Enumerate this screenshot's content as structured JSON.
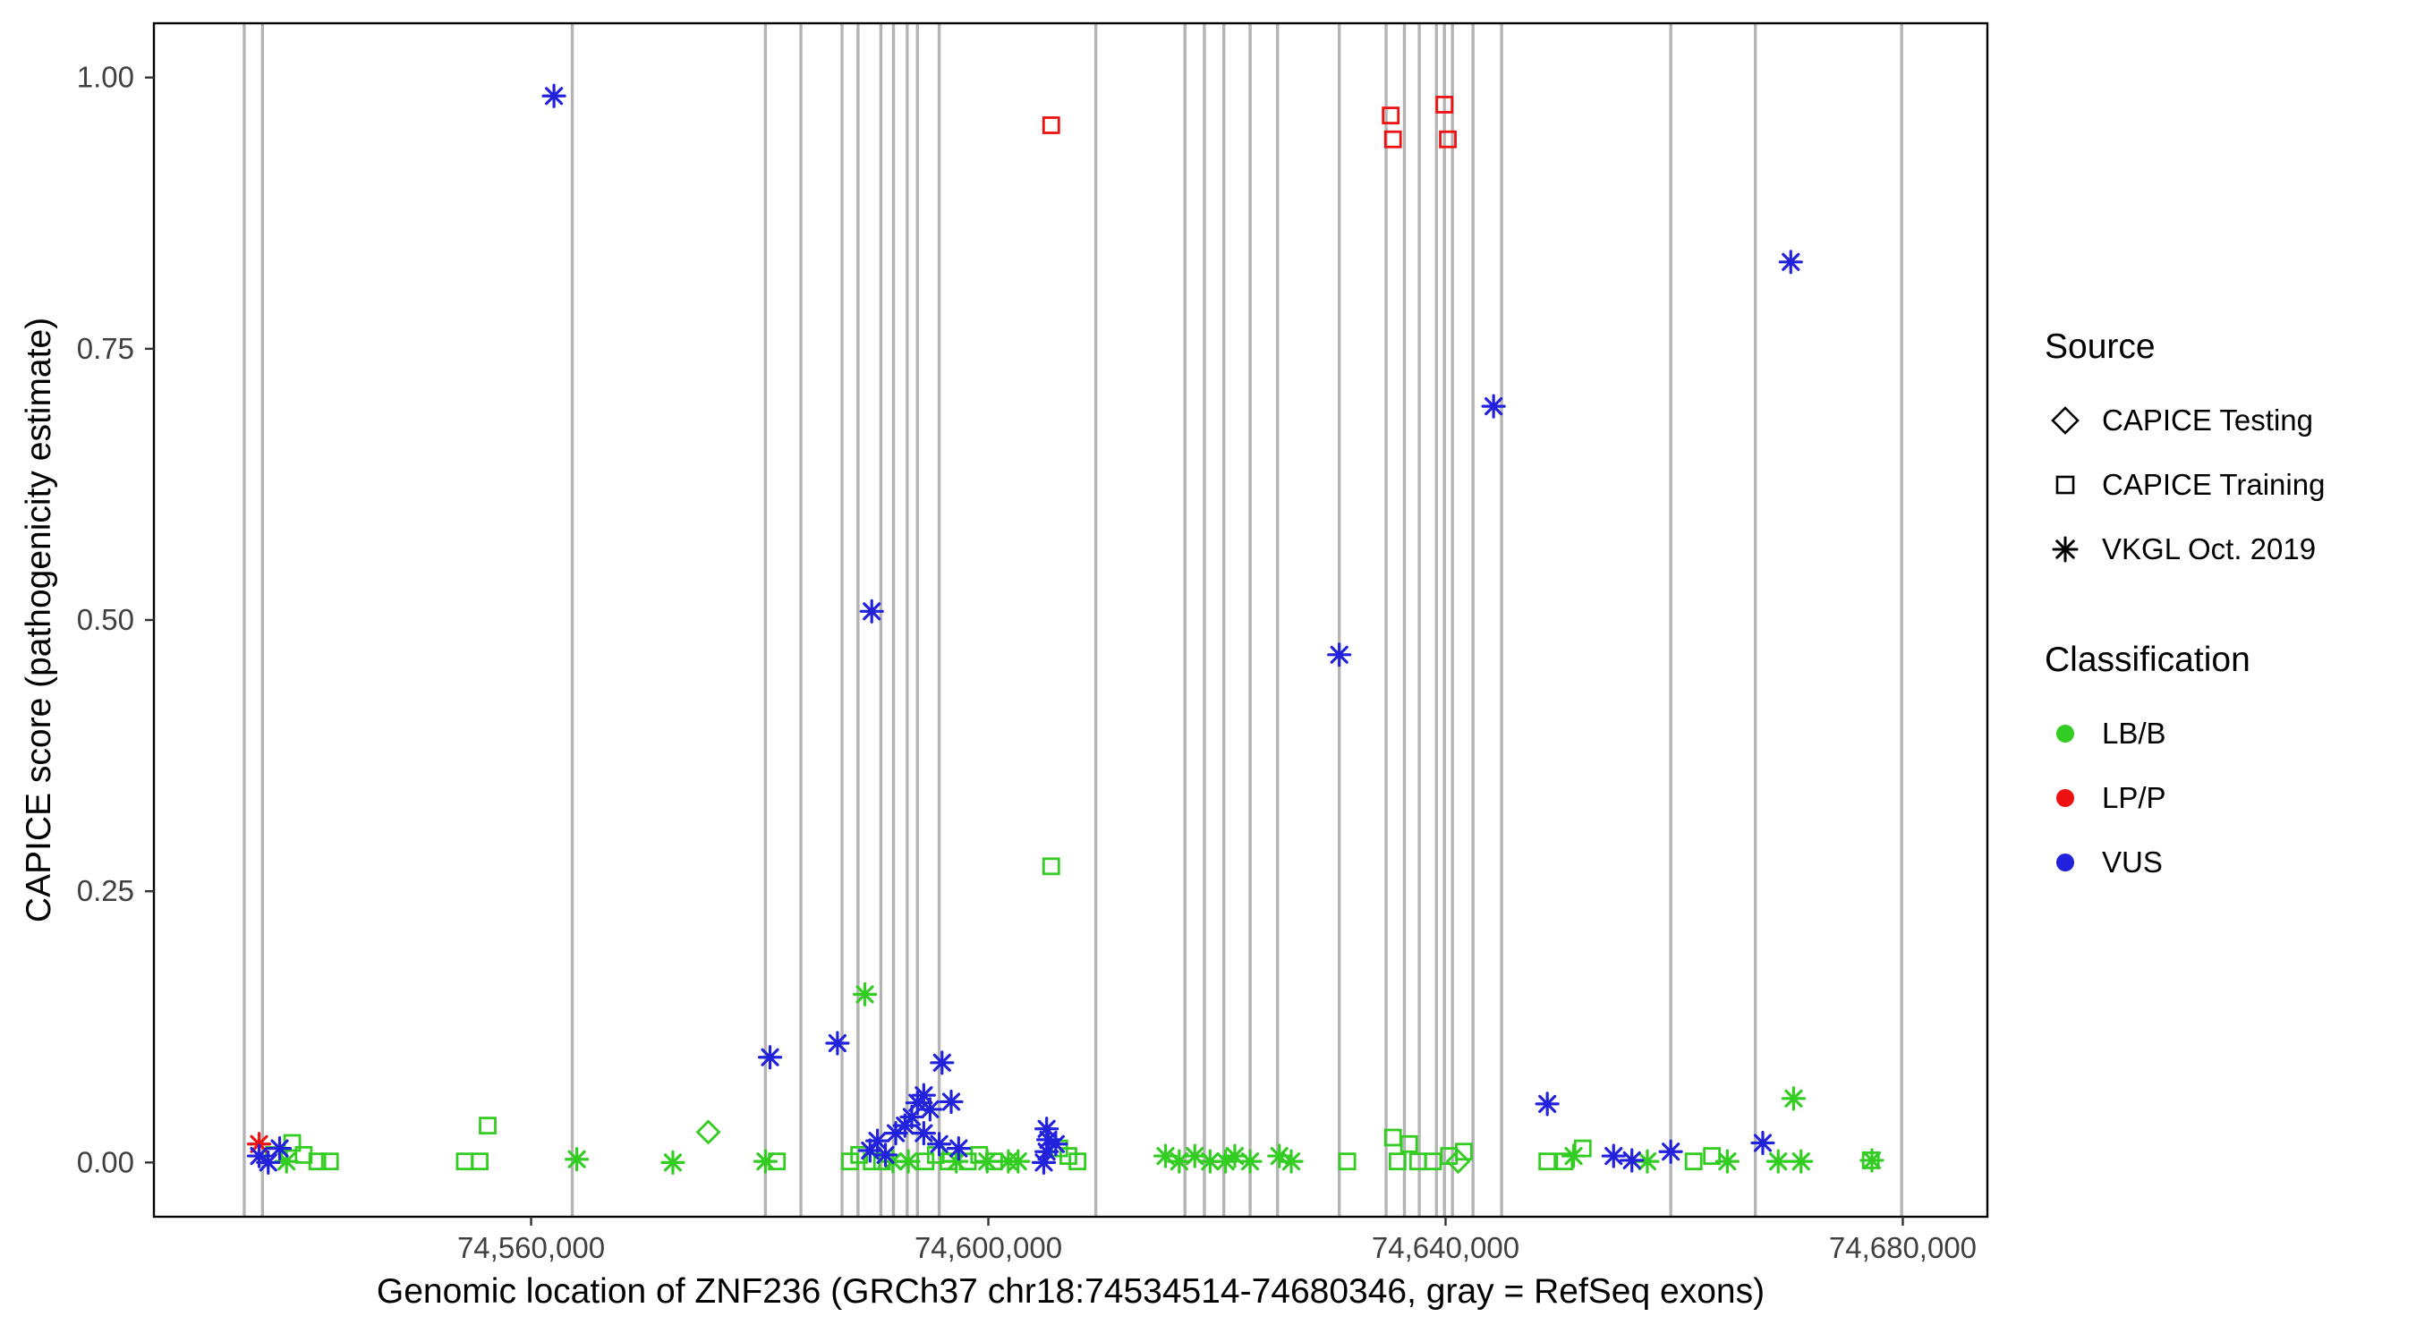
{
  "legend": {
    "source_title": "Source",
    "source_items": [
      {
        "label": "CAPICE Testing",
        "shape": "diamond"
      },
      {
        "label": "CAPICE Training",
        "shape": "square"
      },
      {
        "label": "VKGL Oct. 2019",
        "shape": "asterisk"
      }
    ],
    "classification_title": "Classification",
    "classification_items": [
      {
        "label": "LB/B",
        "color": "#33cc22"
      },
      {
        "label": "LP/P",
        "color": "#ee1111"
      },
      {
        "label": "VUS",
        "color": "#2222dd"
      }
    ]
  },
  "chart_data": {
    "type": "scatter",
    "xlabel": "Genomic location of ZNF236 (GRCh37 chr18:74534514-74680346, gray = RefSeq exons)",
    "ylabel": "CAPICE score (pathogenicity estimate)",
    "xlim": [
      74527000,
      74687400
    ],
    "ylim": [
      -0.05,
      1.05
    ],
    "xticks": [
      74560000,
      74600000,
      74640000,
      74680000
    ],
    "xtick_labels": [
      "74,560,000",
      "74,600,000",
      "74,640,000",
      "74,680,000"
    ],
    "yticks": [
      0,
      0.25,
      0.5,
      0.75,
      1.0
    ],
    "ytick_labels": [
      "0.00",
      "0.25",
      "0.50",
      "0.75",
      "1.00"
    ],
    "grid": false,
    "legend_position": "right",
    "exon_color": "#b4b4b4",
    "panel_border_color": "#000000",
    "classification_colors": {
      "LB/B": "#33cc22",
      "LP/P": "#ee1111",
      "VUS": "#2222dd"
    },
    "exons": [
      74534900,
      74536500,
      74563600,
      74580500,
      74583600,
      74587200,
      74588600,
      74590600,
      74591700,
      74592900,
      74593800,
      74595700,
      74609400,
      74617200,
      74618900,
      74620600,
      74622900,
      74625300,
      74630700,
      74634800,
      74636400,
      74637700,
      74639200,
      74639900,
      74640600,
      74642400,
      74644900,
      74659700,
      74667100,
      74679900
    ],
    "series": [
      {
        "name": "CAPICE Testing / LB/B",
        "source": "CAPICE Testing",
        "classification": "LB/B",
        "shape": "diamond",
        "points": [
          [
            74575500,
            0.028
          ],
          [
            74641100,
            0.001
          ]
        ]
      },
      {
        "name": "CAPICE Training / LB/B",
        "source": "CAPICE Training",
        "classification": "LB/B",
        "shape": "square",
        "points": [
          [
            74537500,
            0.007
          ],
          [
            74539100,
            0.018
          ],
          [
            74540100,
            0.007
          ],
          [
            74541300,
            0.001
          ],
          [
            74542400,
            0.001
          ],
          [
            74554200,
            0.001
          ],
          [
            74555500,
            0.001
          ],
          [
            74556200,
            0.034
          ],
          [
            74581500,
            0.001
          ],
          [
            74587900,
            0.001
          ],
          [
            74588700,
            0.007
          ],
          [
            74589800,
            0.001
          ],
          [
            74590700,
            0.001
          ],
          [
            74594500,
            0.001
          ],
          [
            74595400,
            0.007
          ],
          [
            74596500,
            0.001
          ],
          [
            74598200,
            0.001
          ],
          [
            74599200,
            0.007
          ],
          [
            74600500,
            0.001
          ],
          [
            74605500,
            0.273
          ],
          [
            74606200,
            0.013
          ],
          [
            74607000,
            0.006
          ],
          [
            74607800,
            0.001
          ],
          [
            74631400,
            0.001
          ],
          [
            74635400,
            0.023
          ],
          [
            74636800,
            0.017
          ],
          [
            74635800,
            0.001
          ],
          [
            74637600,
            0.001
          ],
          [
            74638900,
            0.001
          ],
          [
            74640300,
            0.006
          ],
          [
            74641600,
            0.01
          ],
          [
            74648900,
            0.001
          ],
          [
            74650400,
            0.001
          ],
          [
            74652000,
            0.013
          ],
          [
            74661700,
            0.001
          ],
          [
            74663300,
            0.006
          ],
          [
            74677200,
            0.002
          ]
        ]
      },
      {
        "name": "CAPICE Training / LP/P",
        "source": "CAPICE Training",
        "classification": "LP/P",
        "shape": "square",
        "points": [
          [
            74605500,
            0.956
          ],
          [
            74635200,
            0.965
          ],
          [
            74635400,
            0.943
          ],
          [
            74639900,
            0.975
          ],
          [
            74640200,
            0.943
          ]
        ]
      },
      {
        "name": "VKGL Oct. 2019 / LB/B",
        "source": "VKGL Oct. 2019",
        "classification": "LB/B",
        "shape": "asterisk",
        "points": [
          [
            74538600,
            0.001
          ],
          [
            74564000,
            0.003
          ],
          [
            74572400,
            0.0
          ],
          [
            74580500,
            0.001
          ],
          [
            74589200,
            0.155
          ],
          [
            74591650,
            0.001
          ],
          [
            74593000,
            0.001
          ],
          [
            74597200,
            0.001
          ],
          [
            74599900,
            0.001
          ],
          [
            74601750,
            0.001
          ],
          [
            74602600,
            0.001
          ],
          [
            74615500,
            0.006
          ],
          [
            74616700,
            0.001
          ],
          [
            74618060,
            0.006
          ],
          [
            74619400,
            0.001
          ],
          [
            74620750,
            0.001
          ],
          [
            74621560,
            0.006
          ],
          [
            74622900,
            0.001
          ],
          [
            74625460,
            0.006
          ],
          [
            74626500,
            0.001
          ],
          [
            74651200,
            0.006
          ],
          [
            74657650,
            0.001
          ],
          [
            74664650,
            0.001
          ],
          [
            74669100,
            0.001
          ],
          [
            74670450,
            0.059
          ],
          [
            74671100,
            0.001
          ],
          [
            74677300,
            0.002
          ]
        ]
      },
      {
        "name": "VKGL Oct. 2019 / LP/P",
        "source": "VKGL Oct. 2019",
        "classification": "LP/P",
        "shape": "asterisk",
        "points": [
          [
            74536200,
            0.017
          ]
        ]
      },
      {
        "name": "VKGL Oct. 2019 / VUS",
        "source": "VKGL Oct. 2019",
        "classification": "VUS",
        "shape": "asterisk",
        "points": [
          [
            74562000,
            0.983
          ],
          [
            74536200,
            0.006
          ],
          [
            74538000,
            0.013
          ],
          [
            74537000,
            0.0
          ],
          [
            74580900,
            0.097
          ],
          [
            74586800,
            0.11
          ],
          [
            74589800,
            0.508
          ],
          [
            74589650,
            0.011
          ],
          [
            74590300,
            0.02
          ],
          [
            74591000,
            0.007
          ],
          [
            74591900,
            0.027
          ],
          [
            74592700,
            0.034
          ],
          [
            74593300,
            0.042
          ],
          [
            74593800,
            0.055
          ],
          [
            74594350,
            0.062
          ],
          [
            74594900,
            0.049
          ],
          [
            74595700,
            0.017
          ],
          [
            74595950,
            0.092
          ],
          [
            74596750,
            0.056
          ],
          [
            74597400,
            0.013
          ],
          [
            74594350,
            0.027
          ],
          [
            74605100,
            0.031
          ],
          [
            74605250,
            0.021
          ],
          [
            74605100,
            0.01
          ],
          [
            74604850,
            0.0
          ],
          [
            74605900,
            0.017
          ],
          [
            74630700,
            0.468
          ],
          [
            74644200,
            0.697
          ],
          [
            74648900,
            0.054
          ],
          [
            74654700,
            0.006
          ],
          [
            74659700,
            0.01
          ],
          [
            74667750,
            0.018
          ],
          [
            74670200,
            0.83
          ],
          [
            74656300,
            0.002
          ]
        ]
      }
    ]
  }
}
